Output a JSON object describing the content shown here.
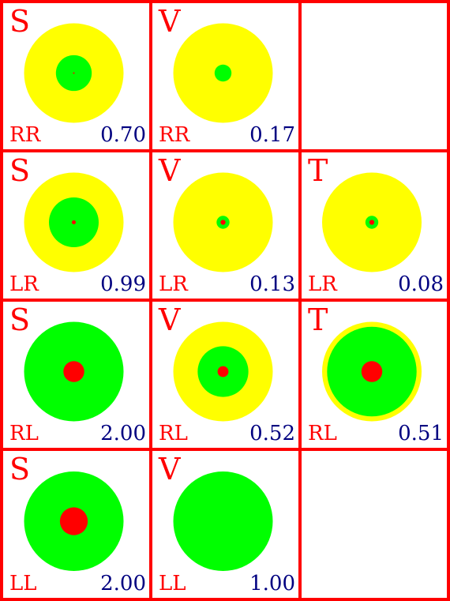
{
  "colors": {
    "border": "#ff0000",
    "outer": "#ffff00",
    "middle": "#00ff00",
    "inner": "#ff0000",
    "label": "#ff0000",
    "value": "#000080"
  },
  "rows": [
    {
      "pair": "RR",
      "cells": [
        {
          "letter": "S",
          "value": "0.70",
          "yellow": 1.0,
          "green": 0.36,
          "red": 0.01
        },
        {
          "letter": "V",
          "value": "0.17",
          "yellow": 1.0,
          "green": 0.17,
          "red": 0.0
        },
        null
      ]
    },
    {
      "pair": "LR",
      "cells": [
        {
          "letter": "S",
          "value": "0.99",
          "yellow": 1.0,
          "green": 0.5,
          "red": 0.04
        },
        {
          "letter": "V",
          "value": "0.13",
          "yellow": 1.0,
          "green": 0.13,
          "red": 0.05
        },
        {
          "letter": "T",
          "value": "0.08",
          "yellow": 1.0,
          "green": 0.13,
          "red": 0.05
        }
      ]
    },
    {
      "pair": "RL",
      "cells": [
        {
          "letter": "S",
          "value": "2.00",
          "yellow": 0.0,
          "green": 1.0,
          "red": 0.21
        },
        {
          "letter": "V",
          "value": "0.52",
          "yellow": 1.0,
          "green": 0.51,
          "red": 0.11
        },
        {
          "letter": "T",
          "value": "0.51",
          "yellow": 1.0,
          "green": 0.9,
          "red": 0.21
        }
      ]
    },
    {
      "pair": "LL",
      "cells": [
        {
          "letter": "S",
          "value": "2.00",
          "yellow": 0.0,
          "green": 1.0,
          "red": 0.28
        },
        {
          "letter": "V",
          "value": "1.00",
          "yellow": 0.0,
          "green": 1.0,
          "red": 0.0
        },
        null
      ]
    }
  ]
}
